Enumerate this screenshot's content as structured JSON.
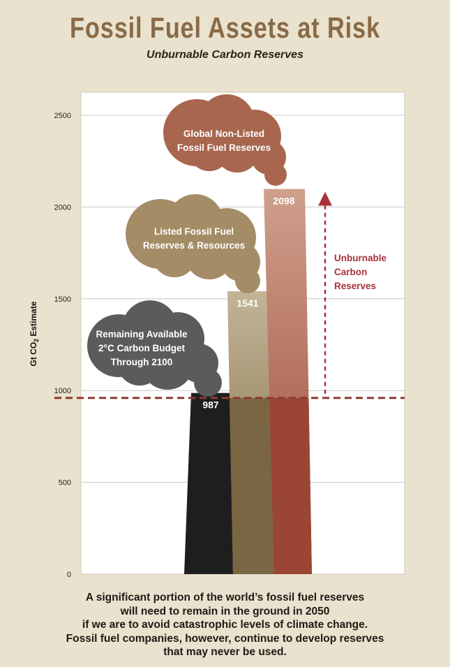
{
  "header": {
    "title": "Fossil Fuel Assets at Risk",
    "subtitle": "Unburnable Carbon Reserves"
  },
  "chart_data": {
    "type": "bar",
    "ylabel_prefix": "Gt CO",
    "ylabel_sub": "2",
    "ylabel_suffix": " Estimate",
    "ylim": [
      0,
      2625
    ],
    "yticks": [
      0,
      500,
      1000,
      1500,
      2000,
      2500
    ],
    "grid": true,
    "series": [
      {
        "value": 987,
        "label": "987",
        "cloud": [
          "Remaining Available",
          "2°C Carbon Budget",
          "Through 2100"
        ],
        "color_top": "#1e1e1e",
        "color_bottom": "#1e1e1e",
        "cloud_color": "#5b5b5b"
      },
      {
        "value": 1541,
        "label": "1541",
        "cloud": [
          "Listed Fossil Fuel",
          "Reserves & Resources"
        ],
        "color_top": "#c3b496",
        "color_bottom": "#7a6642",
        "cloud_color": "#a48c66"
      },
      {
        "value": 2098,
        "label": "2098",
        "cloud": [
          "Global Non-Listed",
          "Fossil Fuel Reserves"
        ],
        "color_top": "#cfa08c",
        "color_bottom": "#9b4534",
        "cloud_color": "#a8664f"
      }
    ],
    "budget_line_value": 960,
    "annotation": [
      "Unburnable",
      "Carbon",
      "Reserves"
    ],
    "colors": {
      "annotation": "#a8323a",
      "budget_line": "#8e3a30"
    }
  },
  "footer": {
    "lines": [
      "A significant portion of the world’s fossil fuel reserves",
      "will need to remain in the ground in 2050",
      "if we are to avoid catastrophic levels of climate change.",
      "Fossil fuel companies, however, continue to develop reserves",
      "that may never be used."
    ]
  }
}
